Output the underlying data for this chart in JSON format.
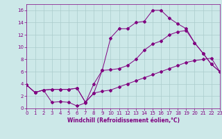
{
  "xlabel": "Windchill (Refroidissement éolien,°C)",
  "bg_color": "#cce8e8",
  "line_color": "#800080",
  "xlim": [
    0,
    23
  ],
  "ylim": [
    0,
    17
  ],
  "xticks": [
    0,
    1,
    2,
    3,
    4,
    5,
    6,
    7,
    8,
    9,
    10,
    11,
    12,
    13,
    14,
    15,
    16,
    17,
    18,
    19,
    20,
    21,
    22,
    23
  ],
  "yticks": [
    0,
    2,
    4,
    6,
    8,
    10,
    12,
    14,
    16
  ],
  "series1_x": [
    0,
    1,
    2,
    3,
    4,
    5,
    6,
    7,
    8,
    9,
    10,
    11,
    12,
    13,
    14,
    15,
    16,
    17,
    18,
    19,
    20,
    21,
    22,
    23
  ],
  "series1_y": [
    3.8,
    2.6,
    3.0,
    3.1,
    3.1,
    3.1,
    3.3,
    1.0,
    2.5,
    6.2,
    11.5,
    13.0,
    13.0,
    14.0,
    14.2,
    16.0,
    16.0,
    14.7,
    13.8,
    13.0,
    10.7,
    9.0,
    7.2,
    6.0
  ],
  "series2_x": [
    0,
    1,
    2,
    3,
    4,
    5,
    6,
    7,
    8,
    9,
    10,
    11,
    12,
    13,
    14,
    15,
    16,
    17,
    18,
    19,
    20,
    21,
    22,
    23
  ],
  "series2_y": [
    3.8,
    2.6,
    3.0,
    1.0,
    1.1,
    1.0,
    0.4,
    0.9,
    4.0,
    6.2,
    6.3,
    6.5,
    7.0,
    8.0,
    9.5,
    10.5,
    11.0,
    12.0,
    12.5,
    12.7,
    10.7,
    9.0,
    7.2,
    6.0
  ],
  "series3_x": [
    0,
    1,
    2,
    3,
    4,
    5,
    6,
    7,
    8,
    9,
    10,
    11,
    12,
    13,
    14,
    15,
    16,
    17,
    18,
    19,
    20,
    21,
    22,
    23
  ],
  "series3_y": [
    3.8,
    2.6,
    3.0,
    3.1,
    3.1,
    3.1,
    3.3,
    1.0,
    2.5,
    2.8,
    3.0,
    3.5,
    4.0,
    4.5,
    5.0,
    5.5,
    6.0,
    6.5,
    7.0,
    7.5,
    7.8,
    8.0,
    8.2,
    6.0
  ],
  "grid_color": "#aacccc",
  "spine_color": "#800080",
  "tick_fontsize": 5.0,
  "xlabel_fontsize": 5.5,
  "marker_size": 2.0,
  "linewidth": 0.7
}
